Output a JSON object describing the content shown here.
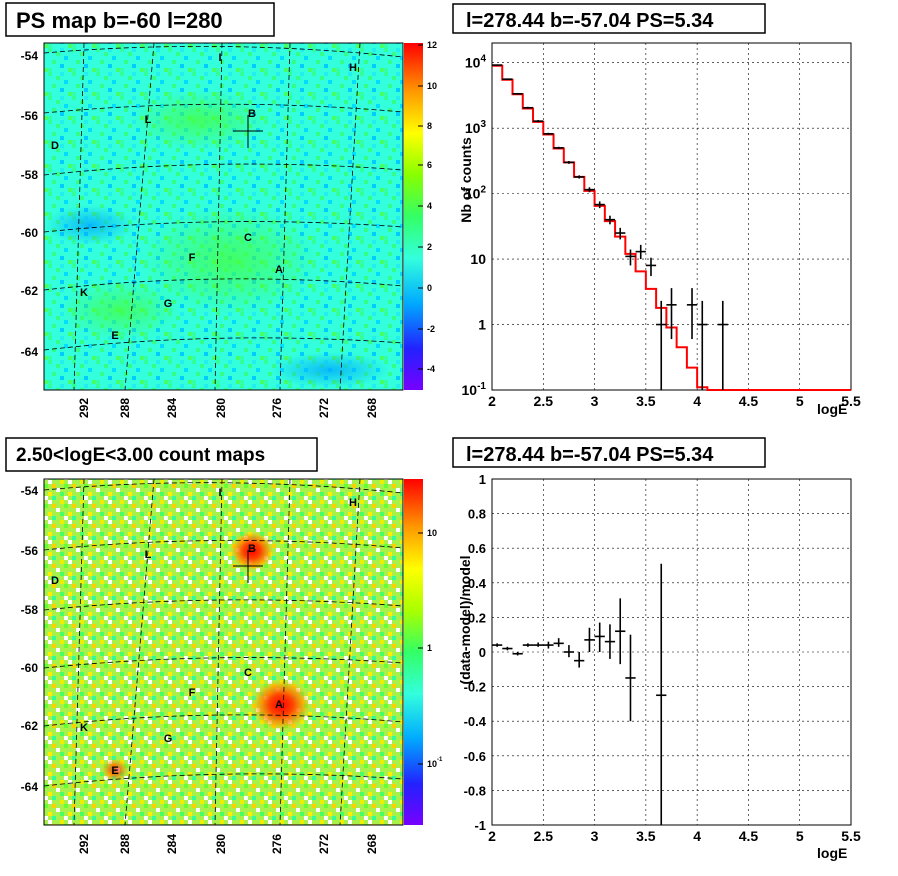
{
  "panels": {
    "top_left": {
      "title": "PS map b=-60 l=280"
    },
    "top_right": {
      "title": "l=278.44 b=-57.04 PS=5.34"
    },
    "bottom_left": {
      "title": "2.50<logE<3.00 count maps"
    },
    "bottom_right": {
      "title": "l=278.44 b=-57.04 PS=5.34"
    }
  },
  "colors": {
    "model_line": "#ff0000",
    "data_points": "#000000",
    "ps_map_background": "#33ffdd",
    "count_map_background": "#a8f04a"
  },
  "chart_data": [
    {
      "type": "heatmap",
      "title": "PS map b=-60 l=280",
      "y_ticks": [
        "-54",
        "-56",
        "-58",
        "-60",
        "-62",
        "-64"
      ],
      "x_ticks": [
        "292",
        "288",
        "284",
        "280",
        "276",
        "272",
        "268"
      ],
      "colorbar_ticks": [
        "12",
        "10",
        "8",
        "6",
        "4",
        "2",
        "0",
        "-2",
        "-4"
      ],
      "source_labels": [
        "I",
        "H",
        "L",
        "B",
        "D",
        "C",
        "F",
        "A",
        "K",
        "G",
        "E"
      ]
    },
    {
      "type": "line",
      "title": "l=278.44 b=-57.04 PS=5.34",
      "xlabel": "logE",
      "ylabel": "Nb of counts",
      "yscale": "log",
      "xlim": [
        2,
        5.5
      ],
      "ylim": [
        0.1,
        20000
      ],
      "grid": true,
      "x_ticks": [
        "2",
        "2.5",
        "3",
        "3.5",
        "4",
        "4.5",
        "5",
        "5.5"
      ],
      "y_ticks": [
        "10^-1",
        "1",
        "10",
        "10^2",
        "10^3",
        "10^4"
      ],
      "model_bins": {
        "edges": [
          2.0,
          2.1,
          2.2,
          2.3,
          2.4,
          2.5,
          2.6,
          2.7,
          2.8,
          2.9,
          3.0,
          3.1,
          3.2,
          3.3,
          3.4,
          3.5,
          3.6,
          3.7,
          3.8,
          3.9,
          4.0,
          4.1,
          4.2,
          4.3,
          5.5
        ],
        "values": [
          9000,
          5500,
          3300,
          2000,
          1250,
          800,
          490,
          300,
          180,
          110,
          65,
          38,
          22,
          12,
          6.5,
          3.5,
          1.8,
          0.9,
          0.45,
          0.22,
          0.11,
          0.1,
          0.1,
          0.1
        ]
      },
      "data_points": [
        {
          "x": 2.05,
          "y": 9200,
          "lo": 9000,
          "hi": 9400
        },
        {
          "x": 2.15,
          "y": 5600,
          "lo": 5450,
          "hi": 5750
        },
        {
          "x": 2.25,
          "y": 3350,
          "lo": 3250,
          "hi": 3450
        },
        {
          "x": 2.35,
          "y": 2050,
          "lo": 1980,
          "hi": 2120
        },
        {
          "x": 2.45,
          "y": 1280,
          "lo": 1230,
          "hi": 1330
        },
        {
          "x": 2.55,
          "y": 820,
          "lo": 790,
          "hi": 850
        },
        {
          "x": 2.65,
          "y": 500,
          "lo": 480,
          "hi": 520
        },
        {
          "x": 2.75,
          "y": 300,
          "lo": 285,
          "hi": 315
        },
        {
          "x": 2.85,
          "y": 180,
          "lo": 170,
          "hi": 190
        },
        {
          "x": 2.95,
          "y": 115,
          "lo": 105,
          "hi": 125
        },
        {
          "x": 3.05,
          "y": 68,
          "lo": 60,
          "hi": 76
        },
        {
          "x": 3.15,
          "y": 40,
          "lo": 34,
          "hi": 46
        },
        {
          "x": 3.25,
          "y": 25,
          "lo": 20,
          "hi": 30
        },
        {
          "x": 3.35,
          "y": 11,
          "lo": 8,
          "hi": 14
        },
        {
          "x": 3.45,
          "y": 13,
          "lo": 10,
          "hi": 16.5
        },
        {
          "x": 3.55,
          "y": 8,
          "lo": 5.5,
          "hi": 10.5
        },
        {
          "x": 3.65,
          "y": 1,
          "lo": 0.1,
          "hi": 2.3
        },
        {
          "x": 3.75,
          "y": 2,
          "lo": 0.6,
          "hi": 3.6
        },
        {
          "x": 3.95,
          "y": 2,
          "lo": 0.6,
          "hi": 3.6
        },
        {
          "x": 4.05,
          "y": 1,
          "lo": 0.1,
          "hi": 2.3
        },
        {
          "x": 4.25,
          "y": 1,
          "lo": 0.1,
          "hi": 2.3
        }
      ]
    },
    {
      "type": "heatmap",
      "title": "2.50<logE<3.00 count maps",
      "y_ticks": [
        "-54",
        "-56",
        "-58",
        "-60",
        "-62",
        "-64"
      ],
      "x_ticks": [
        "292",
        "288",
        "284",
        "280",
        "276",
        "272",
        "268"
      ],
      "colorbar_ticks": [
        "10",
        "1",
        "10^-1"
      ],
      "source_labels": [
        "I",
        "H",
        "L",
        "B",
        "D",
        "C",
        "F",
        "A",
        "K",
        "G",
        "E"
      ]
    },
    {
      "type": "scatter",
      "title": "l=278.44 b=-57.04 PS=5.34",
      "xlabel": "logE",
      "ylabel": "(data-model)/model",
      "xlim": [
        2,
        5.5
      ],
      "ylim": [
        -1,
        1
      ],
      "grid": true,
      "x_ticks": [
        "2",
        "2.5",
        "3",
        "3.5",
        "4",
        "4.5",
        "5",
        "5.5"
      ],
      "y_ticks": [
        "1",
        "0.8",
        "0.6",
        "0.4",
        "0.2",
        "0",
        "-0.2",
        "-0.4",
        "-0.6",
        "-0.8",
        "-1"
      ],
      "data_points": [
        {
          "x": 2.05,
          "y": 0.04,
          "lo": 0.03,
          "hi": 0.05
        },
        {
          "x": 2.15,
          "y": 0.02,
          "lo": 0.01,
          "hi": 0.03
        },
        {
          "x": 2.25,
          "y": -0.01,
          "lo": -0.02,
          "hi": 0.0
        },
        {
          "x": 2.35,
          "y": 0.04,
          "lo": 0.03,
          "hi": 0.05
        },
        {
          "x": 2.45,
          "y": 0.04,
          "lo": 0.03,
          "hi": 0.055
        },
        {
          "x": 2.55,
          "y": 0.04,
          "lo": 0.02,
          "hi": 0.06
        },
        {
          "x": 2.65,
          "y": 0.05,
          "lo": 0.03,
          "hi": 0.08
        },
        {
          "x": 2.75,
          "y": 0.0,
          "lo": -0.03,
          "hi": 0.04
        },
        {
          "x": 2.85,
          "y": -0.05,
          "lo": -0.09,
          "hi": 0.0
        },
        {
          "x": 2.95,
          "y": 0.07,
          "lo": 0.0,
          "hi": 0.14
        },
        {
          "x": 3.05,
          "y": 0.09,
          "lo": 0.0,
          "hi": 0.17
        },
        {
          "x": 3.15,
          "y": 0.06,
          "lo": -0.04,
          "hi": 0.16
        },
        {
          "x": 3.25,
          "y": 0.12,
          "lo": -0.07,
          "hi": 0.31
        },
        {
          "x": 3.35,
          "y": -0.15,
          "lo": -0.4,
          "hi": 0.1
        },
        {
          "x": 3.65,
          "y": -0.25,
          "lo": -1.0,
          "hi": 0.51
        }
      ]
    }
  ]
}
